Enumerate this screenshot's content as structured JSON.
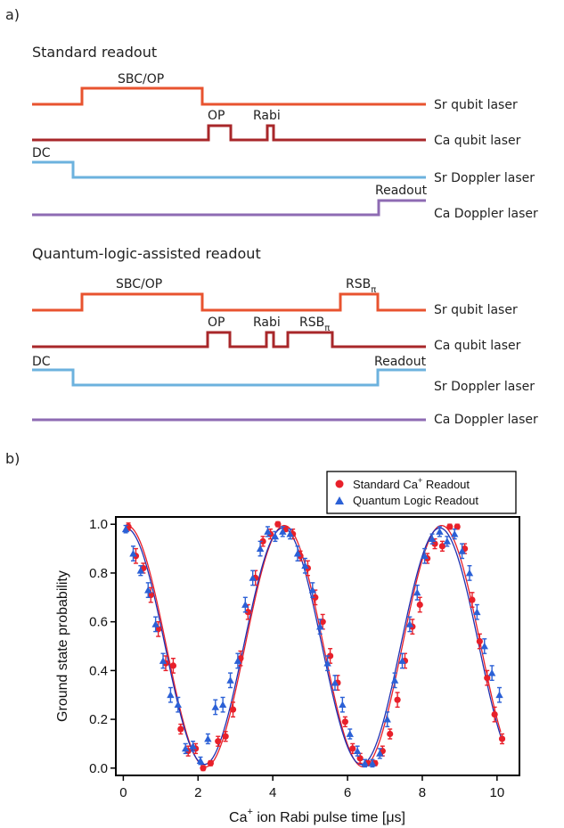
{
  "figure": {
    "panel_a_label": "a)",
    "panel_b_label": "b)",
    "standard": {
      "heading": "Standard readout",
      "channels": [
        {
          "name": "Sr qubit laser",
          "color": "#e8532f",
          "pulses": [
            "SBC/OP"
          ]
        },
        {
          "name": "Ca qubit laser",
          "color": "#a8272a",
          "pulses": [
            "OP",
            "Rabi"
          ]
        },
        {
          "name": "Sr Doppler laser",
          "color": "#6cb2de",
          "pulses": [
            "DC"
          ]
        },
        {
          "name": "Ca Doppler laser",
          "color": "#8e6bb3",
          "pulses": [
            "Readout"
          ]
        }
      ]
    },
    "quantum_logic": {
      "heading": "Quantum-logic-assisted readout",
      "channels": [
        {
          "name": "Sr qubit laser",
          "color": "#e8532f",
          "pulses": [
            "SBC/OP",
            "RSB"
          ]
        },
        {
          "name": "Ca qubit laser",
          "color": "#a8272a",
          "pulses": [
            "OP",
            "Rabi",
            "RSB"
          ]
        },
        {
          "name": "Sr Doppler laser",
          "color": "#6cb2de",
          "pulses": [
            "DC",
            "Readout"
          ]
        },
        {
          "name": "Ca Doppler laser",
          "color": "#8e6bb3",
          "pulses": []
        }
      ],
      "rsb_subscript": "π"
    }
  },
  "chart_data": {
    "type": "scatter",
    "xlabel_parts": [
      "Ca",
      "+",
      " ion Rabi pulse time [μs]"
    ],
    "ylabel": "Ground state probability",
    "xlim": [
      -0.2,
      10.6
    ],
    "ylim": [
      -0.03,
      1.03
    ],
    "xticks": [
      "0",
      "2",
      "4",
      "6",
      "8",
      "10"
    ],
    "yticks": [
      "0.0",
      "0.2",
      "0.4",
      "0.6",
      "0.8",
      "1.0"
    ],
    "grid": false,
    "legend_position": "top-right",
    "legend_prefix": "Standard Ca",
    "legend_sup": "+",
    "legend_suffix": " Readout",
    "series": [
      {
        "name": "Standard Ca+ Readout",
        "marker": "circle",
        "color": "#e8202a",
        "x": [
          0.1,
          0.3,
          0.5,
          0.7,
          0.9,
          1.1,
          1.3,
          1.5,
          1.7,
          1.9,
          2.1,
          2.3,
          2.5,
          2.7,
          2.9,
          3.1,
          3.3,
          3.5,
          3.7,
          3.9,
          4.1,
          4.3,
          4.5,
          4.7,
          4.9,
          5.1,
          5.3,
          5.5,
          5.7,
          5.9,
          6.1,
          6.3,
          6.5,
          6.7,
          6.9,
          7.1,
          7.3,
          7.5,
          7.7,
          7.9,
          8.1,
          8.3,
          8.5,
          8.7,
          8.9,
          9.1,
          9.3,
          9.5,
          9.7,
          9.9,
          10.1
        ],
        "y": [
          0.99,
          0.87,
          0.82,
          0.71,
          0.57,
          0.43,
          0.42,
          0.16,
          0.07,
          0.08,
          0.0,
          0.02,
          0.11,
          0.13,
          0.24,
          0.45,
          0.64,
          0.78,
          0.93,
          0.96,
          1.0,
          0.98,
          0.96,
          0.87,
          0.82,
          0.7,
          0.6,
          0.46,
          0.35,
          0.19,
          0.08,
          0.04,
          0.02,
          0.02,
          0.07,
          0.14,
          0.28,
          0.44,
          0.58,
          0.67,
          0.86,
          0.92,
          0.91,
          0.99,
          0.99,
          0.9,
          0.69,
          0.52,
          0.37,
          0.22,
          0.12
        ],
        "err": [
          0.015,
          0.03,
          0.02,
          0.03,
          0.03,
          0.03,
          0.03,
          0.02,
          0.02,
          0.02,
          0.01,
          0.01,
          0.02,
          0.02,
          0.03,
          0.03,
          0.03,
          0.03,
          0.02,
          0.02,
          0.01,
          0.01,
          0.02,
          0.02,
          0.03,
          0.03,
          0.03,
          0.03,
          0.03,
          0.02,
          0.02,
          0.02,
          0.01,
          0.01,
          0.02,
          0.02,
          0.03,
          0.03,
          0.03,
          0.03,
          0.02,
          0.02,
          0.02,
          0.01,
          0.01,
          0.02,
          0.03,
          0.03,
          0.03,
          0.03,
          0.02
        ]
      },
      {
        "name": "Quantum Logic Readout",
        "marker": "triangle",
        "color": "#2b60d6",
        "x": [
          0.1,
          0.3,
          0.5,
          0.7,
          0.9,
          1.1,
          1.3,
          1.5,
          1.7,
          1.9,
          2.1,
          2.3,
          2.5,
          2.7,
          2.9,
          3.1,
          3.3,
          3.5,
          3.7,
          3.9,
          4.1,
          4.3,
          4.5,
          4.7,
          4.9,
          5.1,
          5.3,
          5.5,
          5.7,
          5.9,
          6.1,
          6.3,
          6.5,
          6.7,
          6.9,
          7.1,
          7.3,
          7.5,
          7.7,
          7.9,
          8.1,
          8.3,
          8.5,
          8.7,
          8.9,
          9.1,
          9.3,
          9.5,
          9.7,
          9.9,
          10.1
        ],
        "y": [
          0.98,
          0.88,
          0.81,
          0.73,
          0.59,
          0.44,
          0.3,
          0.26,
          0.08,
          0.09,
          0.03,
          0.12,
          0.25,
          0.26,
          0.36,
          0.44,
          0.67,
          0.78,
          0.9,
          0.97,
          0.95,
          0.97,
          0.96,
          0.88,
          0.83,
          0.73,
          0.58,
          0.43,
          0.35,
          0.26,
          0.14,
          0.07,
          0.02,
          0.02,
          0.06,
          0.2,
          0.36,
          0.44,
          0.59,
          0.72,
          0.87,
          0.94,
          0.97,
          0.93,
          0.96,
          0.89,
          0.8,
          0.64,
          0.5,
          0.39,
          0.3
        ],
        "err": [
          0.015,
          0.03,
          0.02,
          0.03,
          0.03,
          0.03,
          0.03,
          0.03,
          0.02,
          0.02,
          0.015,
          0.02,
          0.03,
          0.03,
          0.03,
          0.03,
          0.03,
          0.03,
          0.03,
          0.02,
          0.02,
          0.02,
          0.02,
          0.03,
          0.03,
          0.03,
          0.03,
          0.03,
          0.03,
          0.03,
          0.02,
          0.02,
          0.015,
          0.015,
          0.02,
          0.03,
          0.03,
          0.03,
          0.03,
          0.03,
          0.03,
          0.02,
          0.02,
          0.02,
          0.02,
          0.03,
          0.03,
          0.03,
          0.03,
          0.03,
          0.03
        ]
      }
    ],
    "fit_period": 4.2,
    "fit_colors": [
      "#e8202a",
      "#1f2fb0"
    ]
  }
}
